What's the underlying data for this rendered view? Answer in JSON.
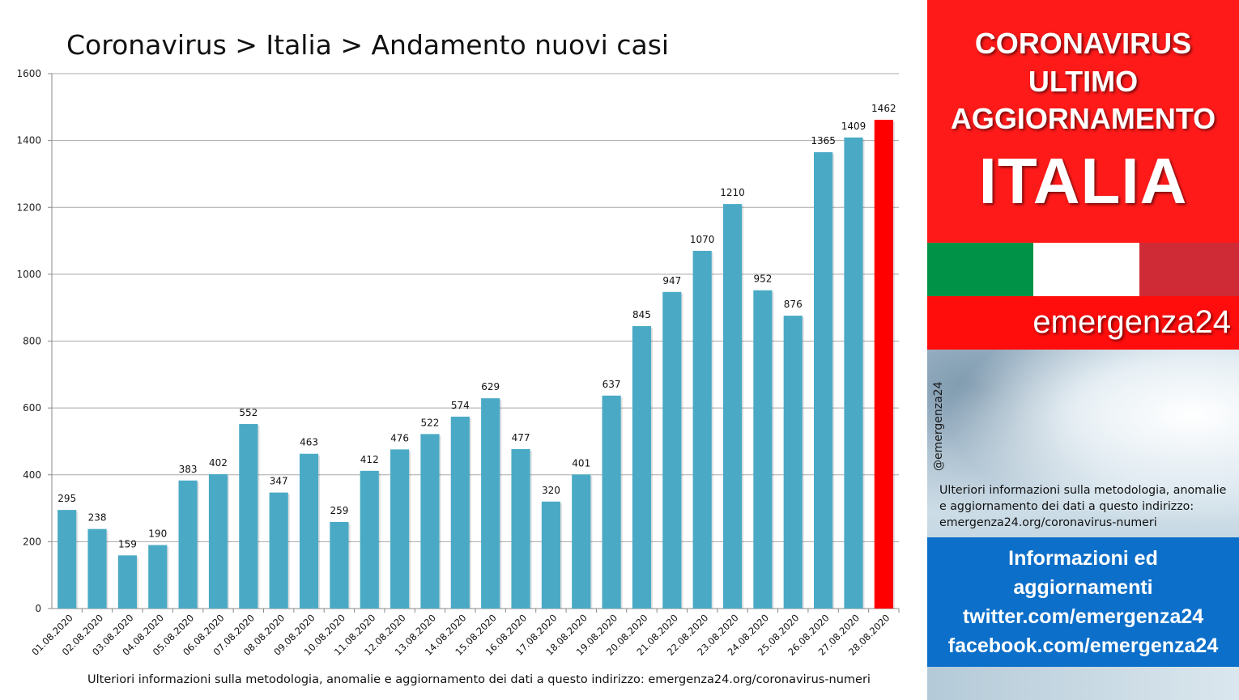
{
  "chart": {
    "title": "Coronavirus > Italia > Andamento nuovi casi",
    "footnote": "Ulteriori informazioni sulla metodologia, anomalie e aggiornamento dei dati a questo indirizzo: emergenza24.org/coronavirus-numeri"
  },
  "chart_data": {
    "type": "bar",
    "title": "Coronavirus > Italia > Andamento nuovi casi",
    "xlabel": "",
    "ylabel": "",
    "ylim": [
      0,
      1600
    ],
    "yticks": [
      0,
      200,
      400,
      600,
      800,
      1000,
      1200,
      1400,
      1600
    ],
    "grid": true,
    "categories": [
      "01.08.2020",
      "02.08.2020",
      "03.08.2020",
      "04.08.2020",
      "05.08.2020",
      "06.08.2020",
      "07.08.2020",
      "08.08.2020",
      "09.08.2020",
      "10.08.2020",
      "11.08.2020",
      "12.08.2020",
      "13.08.2020",
      "14.08.2020",
      "15.08.2020",
      "16.08.2020",
      "17.08.2020",
      "18.08.2020",
      "19.08.2020",
      "20.08.2020",
      "21.08.2020",
      "22.08.2020",
      "23.08.2020",
      "24.08.2020",
      "25.08.2020",
      "26.08.2020",
      "27.08.2020",
      "28.08.2020"
    ],
    "values": [
      295,
      238,
      159,
      190,
      383,
      402,
      552,
      347,
      463,
      259,
      412,
      476,
      522,
      574,
      629,
      477,
      320,
      401,
      637,
      845,
      947,
      1070,
      1210,
      952,
      876,
      1365,
      1409,
      1462
    ],
    "bar_color": "#4aaac6",
    "highlight_color": "#ff0000",
    "highlight_index": 27
  },
  "sidebar": {
    "banner_line1": "CORONAVIRUS",
    "banner_line2": "ULTIMO",
    "banner_line3": "AGGIORNAMENTO",
    "banner_country": "ITALIA",
    "flag_colors": [
      "#009246",
      "#ffffff",
      "#ce2b37"
    ],
    "brand": "emergenza24",
    "handle": "@emergenza24",
    "info_text": "Ulteriori informazioni sulla metodologia, anomalie e aggiornamento dei dati a questo indirizzo: emergenza24.org/coronavirus-numeri",
    "blue_line1": "Informazioni ed",
    "blue_line2": "aggiornamenti",
    "blue_line3": "twitter.com/emergenza24",
    "blue_line4": "facebook.com/emergenza24"
  }
}
